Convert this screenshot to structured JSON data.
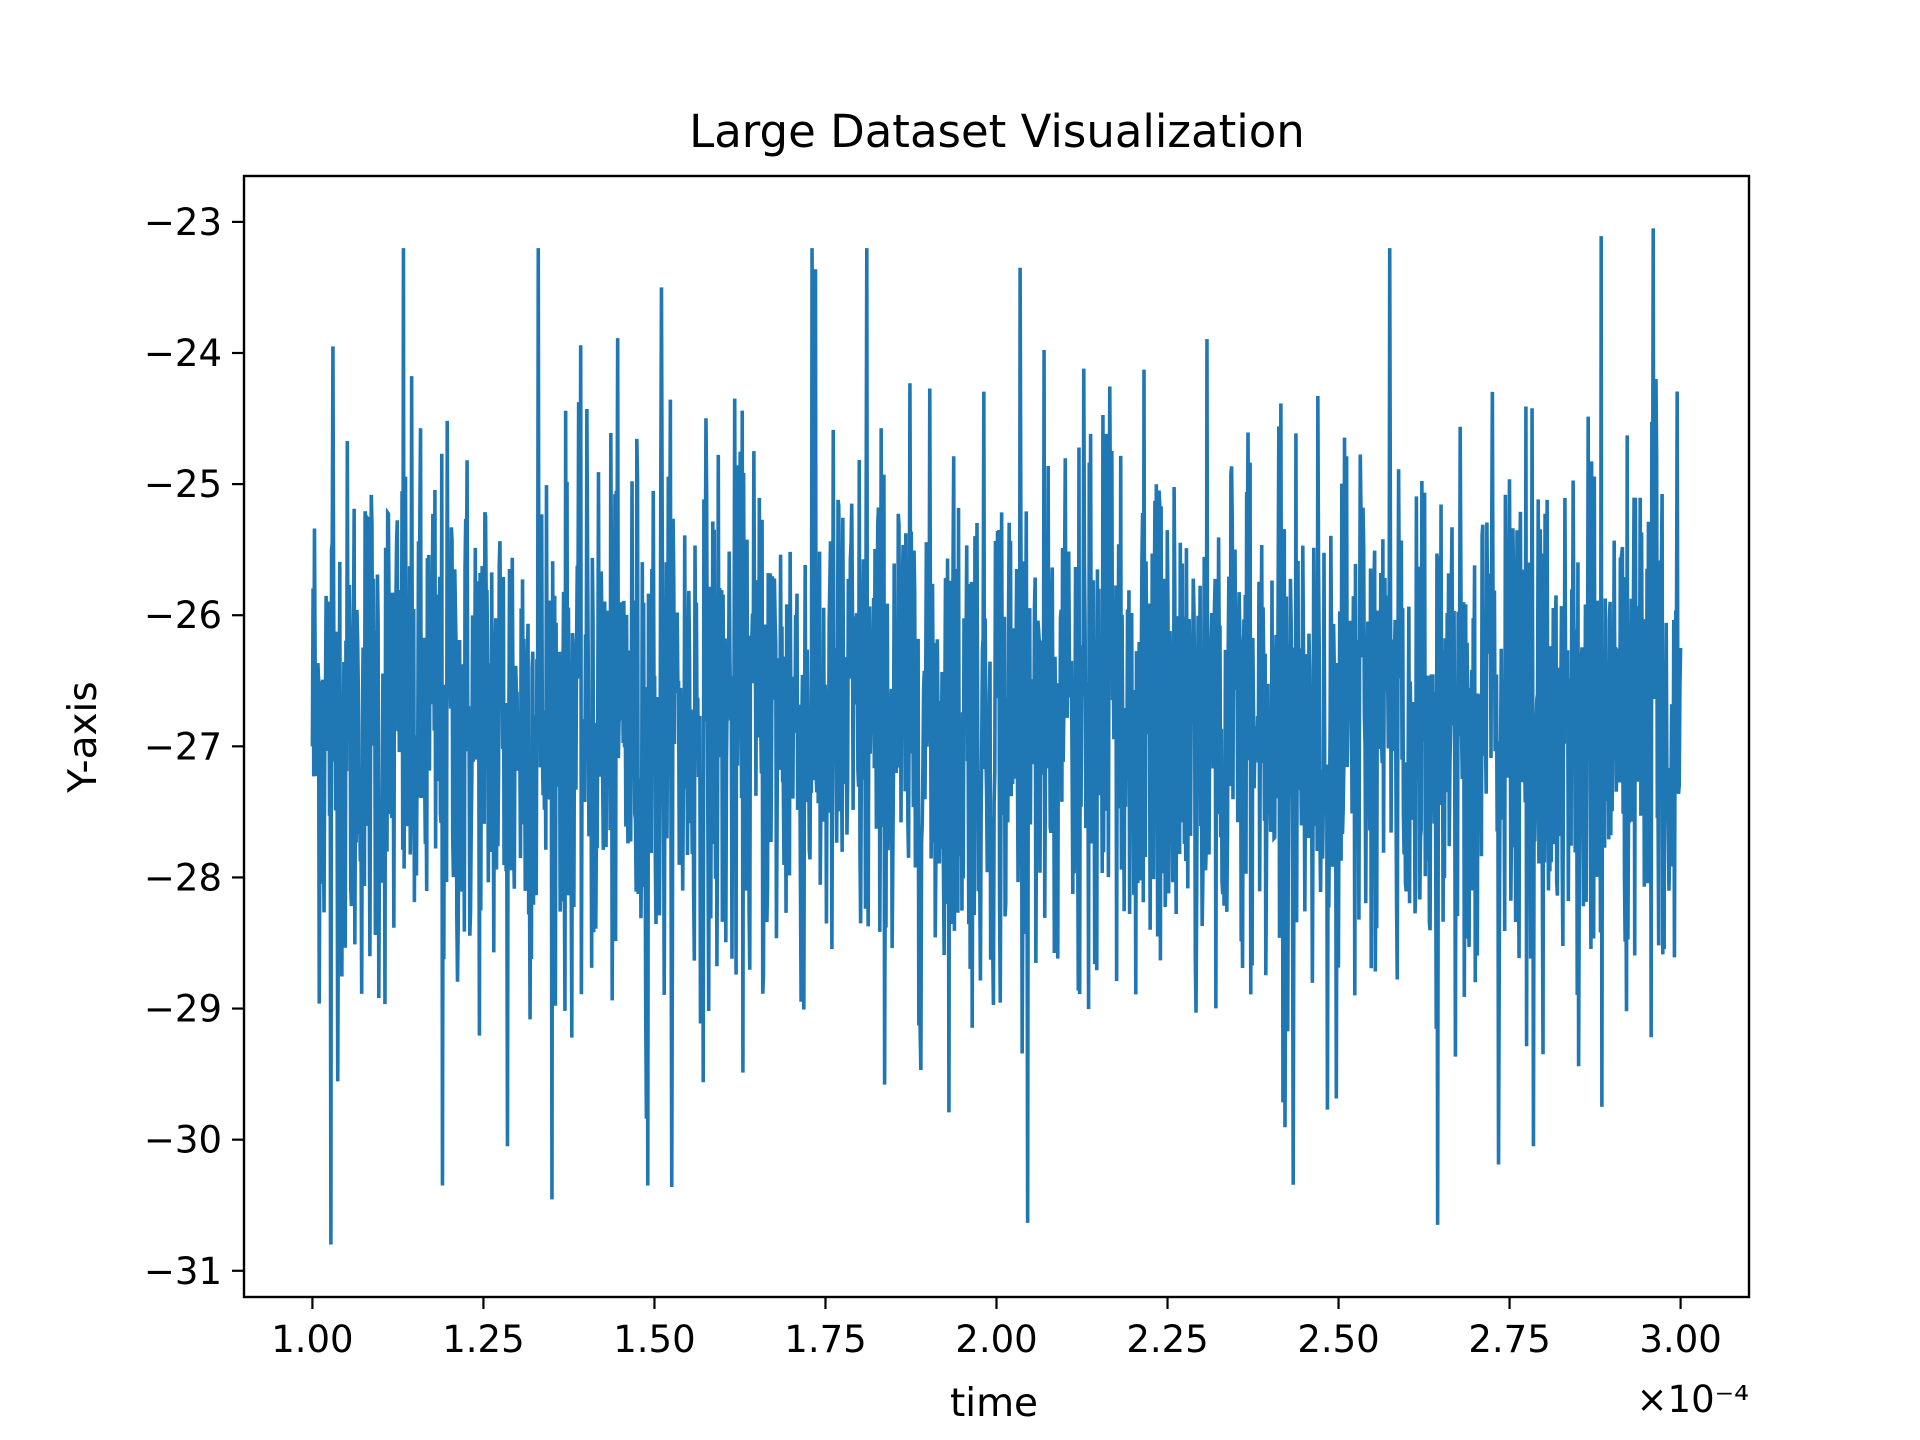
{
  "chart_data": {
    "type": "line",
    "title": "Large Dataset Visualization",
    "xlabel": "time",
    "ylabel": "Y-axis",
    "x_offset_label": "×10⁻⁴",
    "xlim": [
      0.9,
      3.1
    ],
    "ylim": [
      -31.2,
      -22.65
    ],
    "x_scale_factor": 0.0001,
    "xticks": [
      1.0,
      1.25,
      1.5,
      1.75,
      2.0,
      2.25,
      2.5,
      2.75,
      3.0
    ],
    "xtick_labels": [
      "1.00",
      "1.25",
      "1.50",
      "1.75",
      "2.00",
      "2.25",
      "2.50",
      "2.75",
      "3.00"
    ],
    "yticks": [
      -23,
      -24,
      -25,
      -26,
      -27,
      -28,
      -29,
      -30,
      -31
    ],
    "ytick_labels": [
      "−23",
      "−24",
      "−25",
      "−26",
      "−27",
      "−28",
      "−29",
      "−30",
      "−31"
    ],
    "grid": false,
    "series": [
      {
        "color": "#1f77b4",
        "x_start": 1.0,
        "x_end": 3.0,
        "num_points": 2000,
        "baseline": -26.8,
        "y_min": -30.8,
        "y_max": -23.0,
        "extremes": [
          {
            "x": 1.0,
            "y": -27.0
          },
          {
            "x": 1.027,
            "y": -30.8
          },
          {
            "x": 1.03,
            "y": -23.95
          },
          {
            "x": 1.133,
            "y": -23.2
          },
          {
            "x": 1.19,
            "y": -30.35
          },
          {
            "x": 1.285,
            "y": -30.05
          },
          {
            "x": 1.33,
            "y": -23.2
          },
          {
            "x": 1.49,
            "y": -30.35
          },
          {
            "x": 1.51,
            "y": -23.5
          },
          {
            "x": 1.73,
            "y": -23.2
          },
          {
            "x": 1.81,
            "y": -23.2
          },
          {
            "x": 2.035,
            "y": -23.35
          },
          {
            "x": 2.645,
            "y": -30.65
          },
          {
            "x": 2.575,
            "y": -23.2
          },
          {
            "x": 2.785,
            "y": -30.05
          },
          {
            "x": 2.885,
            "y": -29.75
          },
          {
            "x": 2.96,
            "y": -23.05
          },
          {
            "x": 3.0,
            "y": -26.25
          }
        ]
      }
    ]
  }
}
